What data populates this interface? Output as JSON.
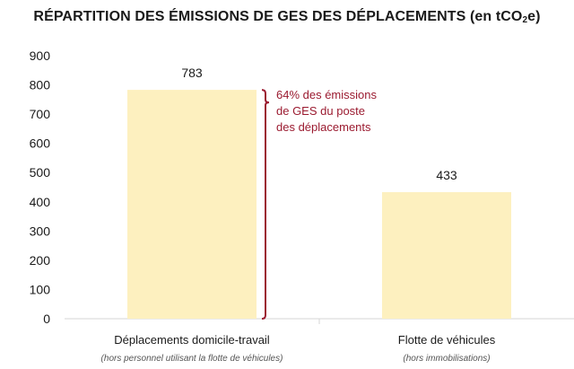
{
  "colors": {
    "bar": "#fdf0bf",
    "axis": "#d6d6d6",
    "annotation": "#9b1b30",
    "text": "#1a1a1a"
  },
  "chart_data": {
    "type": "bar",
    "title": {
      "pre": "RÉPARTITION DES ÉMISSIONS DE GES DES DÉPLACEMENTS (en tCO",
      "sub": "2",
      "post": "e)"
    },
    "categories": [
      "Déplacements domicile-travail",
      "Flotte de véhicules"
    ],
    "category_notes": [
      "(hors personnel utilisant la flotte de véhicules)",
      "(hors immobilisations)"
    ],
    "values": [
      783,
      433
    ],
    "data_labels": [
      "783",
      "433"
    ],
    "ylim": [
      0,
      900
    ],
    "yticks": [
      0,
      100,
      200,
      300,
      400,
      500,
      600,
      700,
      800,
      900
    ],
    "grid": false,
    "annotation": {
      "lines": [
        "64% des émissions",
        "de GES du poste",
        "des déplacements"
      ],
      "bracket_range": [
        0,
        783
      ]
    }
  }
}
